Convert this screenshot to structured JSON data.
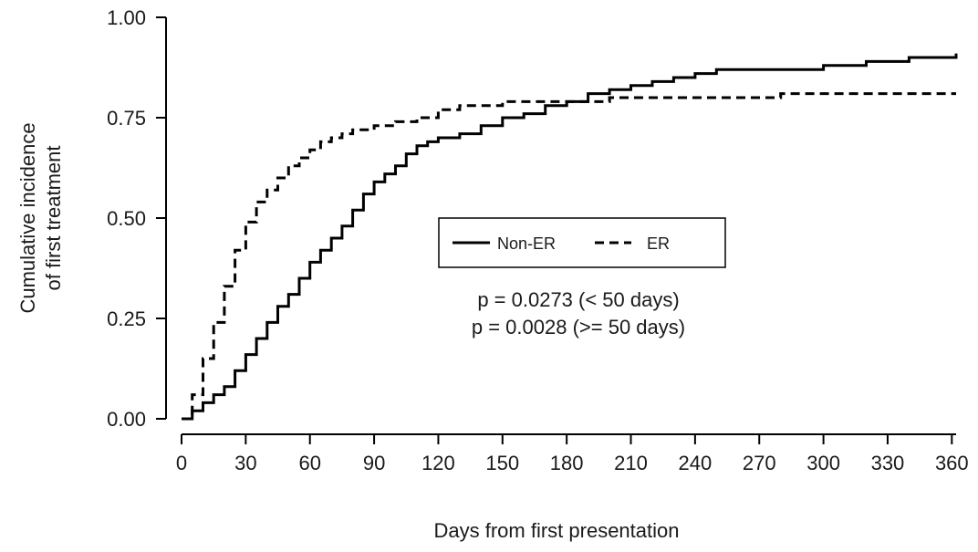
{
  "chart_data": {
    "type": "line",
    "xlabel": "Days from first presentation",
    "ylabel_lines": [
      "Cumulative incidence",
      "of first treatment"
    ],
    "xlim": [
      0,
      362
    ],
    "ylim": [
      0,
      1
    ],
    "x_ticks": [
      0,
      30,
      60,
      90,
      120,
      150,
      180,
      210,
      240,
      270,
      300,
      330,
      360
    ],
    "y_ticks": [
      0,
      0.25,
      0.5,
      0.75,
      1
    ],
    "y_tick_labels": [
      "0.00",
      "0.25",
      "0.50",
      "0.75",
      "1.00"
    ],
    "grid": false,
    "legend_position": "center",
    "series": [
      {
        "name": "Non-ER",
        "style": "solid",
        "x": [
          0,
          5,
          10,
          15,
          20,
          25,
          30,
          35,
          40,
          45,
          50,
          55,
          60,
          65,
          70,
          75,
          80,
          85,
          90,
          95,
          100,
          105,
          110,
          115,
          120,
          130,
          140,
          150,
          160,
          170,
          180,
          190,
          200,
          210,
          220,
          230,
          240,
          250,
          260,
          270,
          280,
          290,
          300,
          310,
          320,
          330,
          340,
          350,
          362
        ],
        "y": [
          0,
          0.02,
          0.04,
          0.06,
          0.08,
          0.12,
          0.16,
          0.2,
          0.24,
          0.28,
          0.31,
          0.35,
          0.39,
          0.42,
          0.45,
          0.48,
          0.52,
          0.56,
          0.59,
          0.61,
          0.63,
          0.66,
          0.68,
          0.69,
          0.7,
          0.71,
          0.73,
          0.75,
          0.76,
          0.78,
          0.79,
          0.81,
          0.82,
          0.83,
          0.84,
          0.85,
          0.86,
          0.87,
          0.87,
          0.87,
          0.87,
          0.87,
          0.88,
          0.88,
          0.89,
          0.89,
          0.9,
          0.9,
          0.91
        ]
      },
      {
        "name": "ER",
        "style": "dashed",
        "x": [
          0,
          5,
          10,
          15,
          20,
          25,
          30,
          35,
          40,
          45,
          50,
          55,
          60,
          65,
          70,
          75,
          80,
          90,
          100,
          110,
          120,
          130,
          140,
          150,
          160,
          170,
          180,
          200,
          240,
          280,
          320,
          362
        ],
        "y": [
          0,
          0.06,
          0.15,
          0.24,
          0.33,
          0.42,
          0.49,
          0.54,
          0.57,
          0.6,
          0.63,
          0.65,
          0.67,
          0.69,
          0.7,
          0.71,
          0.72,
          0.73,
          0.74,
          0.75,
          0.77,
          0.78,
          0.78,
          0.79,
          0.79,
          0.79,
          0.79,
          0.8,
          0.8,
          0.81,
          0.81,
          0.81
        ]
      }
    ],
    "annotations": [
      "p = 0.0273 (< 50 days)",
      "p = 0.0028 (>= 50 days)"
    ]
  }
}
